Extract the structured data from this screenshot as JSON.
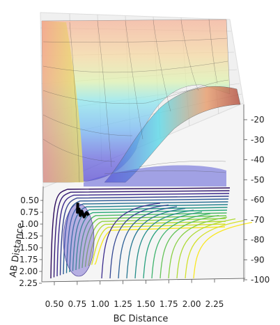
{
  "chart_data": {
    "type": "3d-surface",
    "title": "",
    "xlabel": "BC Distance",
    "ylabel": "AB Distance",
    "zlabel": "",
    "x_ticks": [
      "0.50",
      "0.75",
      "1.00",
      "1.25",
      "1.50",
      "1.75",
      "2.00",
      "2.25"
    ],
    "y_ticks": [
      "0.50",
      "0.75",
      "1.00",
      "1.25",
      "1.50",
      "1.75",
      "2.00",
      "2.25"
    ],
    "z_ticks": [
      "-20",
      "-30",
      "-40",
      "-50",
      "-60",
      "-70",
      "-80",
      "-90",
      "-100"
    ],
    "xlim": [
      0.5,
      2.25
    ],
    "ylim": [
      0.5,
      2.25
    ],
    "zlim": [
      -100,
      -20
    ],
    "surface_bands": [
      -20,
      -30,
      -40,
      -50,
      -60,
      -70,
      -80,
      -90,
      -100
    ],
    "contour_levels": 15,
    "trajectory": [
      [
        0.75,
        0.75
      ],
      [
        0.74,
        0.95
      ],
      [
        0.76,
        0.88
      ],
      [
        0.77,
        1.02
      ],
      [
        0.79,
        0.93
      ],
      [
        0.81,
        1.05
      ],
      [
        0.84,
        0.96
      ],
      [
        0.86,
        1.02
      ]
    ],
    "colors": {
      "surface_high": "#f4a582",
      "surface_low": "#4040c8",
      "contour_low": "#2b0a5c",
      "contour_high": "#f9e721",
      "trajectory": "#000000",
      "grid": "#bbbbbb"
    }
  }
}
